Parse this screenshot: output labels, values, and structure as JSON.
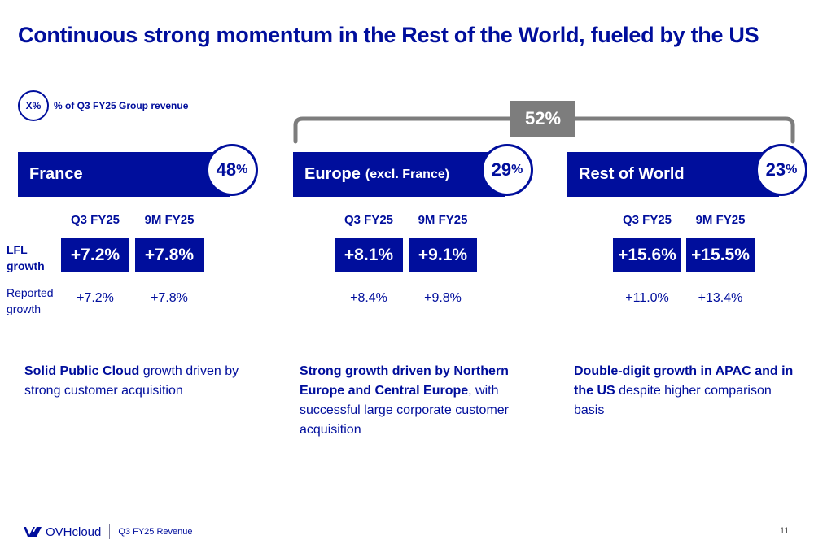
{
  "title": "Continuous strong momentum in the Rest of the World, fueled by the US",
  "legend": {
    "symbol": "X%",
    "text": "% of Q3 FY25 Group revenue"
  },
  "bracket_label": "52%",
  "row_labels": {
    "lfl_line1": "LFL",
    "lfl_line2": "growth",
    "reported_line1": "Reported",
    "reported_line2": "growth"
  },
  "regions": [
    {
      "name": "France",
      "sub": "",
      "share": "48",
      "share_suffix": "%",
      "q3_head": "Q3 FY25",
      "9m_head": "9M FY25",
      "lfl_q3": "+7.2%",
      "lfl_9m": "+7.8%",
      "rep_q3": "+7.2%",
      "rep_9m": "+7.8%",
      "desc_bold": "Solid Public Cloud",
      "desc_rest": " growth driven by strong customer acquisition"
    },
    {
      "name": "Europe",
      "sub": "(excl. France)",
      "share": "29",
      "share_suffix": "%",
      "q3_head": "Q3 FY25",
      "9m_head": "9M FY25",
      "lfl_q3": "+8.1%",
      "lfl_9m": "+9.1%",
      "rep_q3": "+8.4%",
      "rep_9m": "+9.8%",
      "desc_bold": "Strong growth driven by Northern Europe and Central Europe",
      "desc_rest": ", with successful large corporate customer acquisition"
    },
    {
      "name": "Rest of World",
      "sub": "",
      "share": "23",
      "share_suffix": "%",
      "q3_head": "Q3 FY25",
      "9m_head": "9M FY25",
      "lfl_q3": "+15.6%",
      "lfl_9m": "+15.5%",
      "rep_q3": "+11.0%",
      "rep_9m": "+13.4%",
      "desc_bold": "Double-digit growth in APAC and in the US",
      "desc_rest": " despite higher comparison basis"
    }
  ],
  "footer": {
    "logo": "OVHcloud",
    "text": "Q3 FY25 Revenue",
    "page": "11"
  },
  "colors": {
    "brand_blue": "#000e9c",
    "bracket_gray": "#7d7d7d"
  }
}
